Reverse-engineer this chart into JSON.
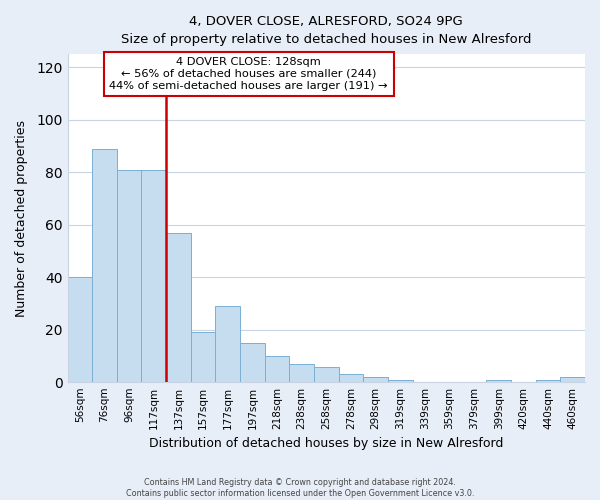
{
  "title": "4, DOVER CLOSE, ALRESFORD, SO24 9PG",
  "subtitle": "Size of property relative to detached houses in New Alresford",
  "xlabel": "Distribution of detached houses by size in New Alresford",
  "ylabel": "Number of detached properties",
  "bar_labels": [
    "56sqm",
    "76sqm",
    "96sqm",
    "117sqm",
    "137sqm",
    "157sqm",
    "177sqm",
    "197sqm",
    "218sqm",
    "238sqm",
    "258sqm",
    "278sqm",
    "298sqm",
    "319sqm",
    "339sqm",
    "359sqm",
    "379sqm",
    "399sqm",
    "420sqm",
    "440sqm",
    "460sqm"
  ],
  "bar_heights": [
    40,
    89,
    81,
    81,
    57,
    19,
    29,
    15,
    10,
    7,
    6,
    3,
    2,
    1,
    0,
    0,
    0,
    1,
    0,
    1,
    2
  ],
  "bar_color": "#c5ddef",
  "bar_edge_color": "#7aafd4",
  "vline_color": "#cc0000",
  "ylim": [
    0,
    125
  ],
  "yticks": [
    0,
    20,
    40,
    60,
    80,
    100,
    120
  ],
  "annotation_line1": "4 DOVER CLOSE: 128sqm",
  "annotation_line2": "← 56% of detached houses are smaller (244)",
  "annotation_line3": "44% of semi-detached houses are larger (191) →",
  "footer_line1": "Contains HM Land Registry data © Crown copyright and database right 2024.",
  "footer_line2": "Contains public sector information licensed under the Open Government Licence v3.0.",
  "background_color": "#e8eef8",
  "plot_bg_color": "#ffffff",
  "grid_color": "#c8d4e4"
}
